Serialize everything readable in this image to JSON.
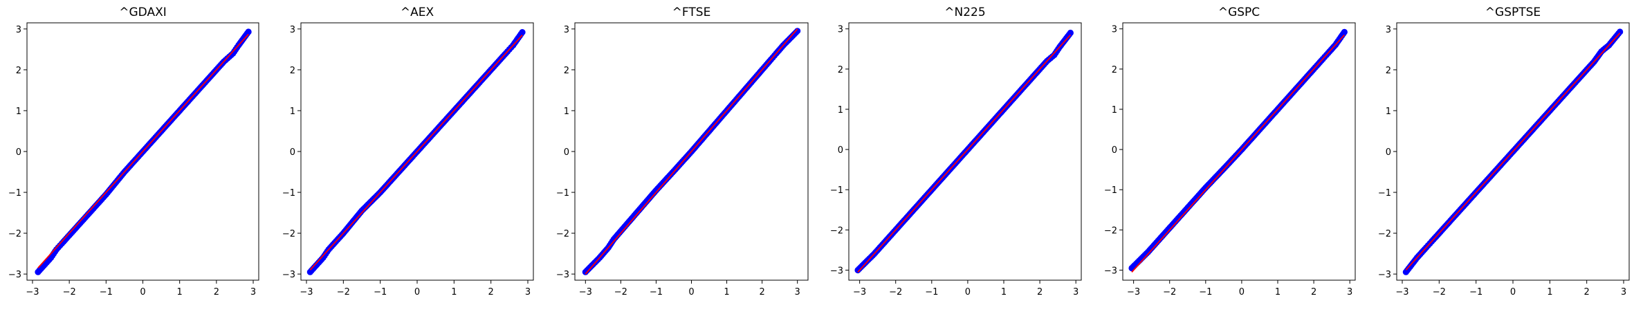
{
  "chart_data": [
    {
      "type": "scatter",
      "title": "^GDAXI",
      "xlabel": "",
      "ylabel": "",
      "xlim": [
        -3.15,
        3.15
      ],
      "ylim": [
        -3.15,
        3.15
      ],
      "xticks": [
        -3,
        -2,
        -1,
        0,
        1,
        2,
        3
      ],
      "xtick_labels": [
        "−3",
        "−2",
        "−1",
        "0",
        "1",
        "2",
        "3"
      ],
      "yticks": [
        -3,
        -2,
        -1,
        0,
        1,
        2,
        3
      ],
      "ytick_labels": [
        "−3",
        "−2",
        "−1",
        "0",
        "1",
        "2",
        "3"
      ],
      "grid": false,
      "series": [
        {
          "kind": "points",
          "color": "#0000ff",
          "x": [
            -2.85,
            -2.5,
            -2.35,
            -2.2,
            -2.0,
            -1.5,
            -1.0,
            -0.5,
            0.0,
            0.5,
            1.0,
            1.5,
            2.0,
            2.2,
            2.45,
            2.6,
            2.87
          ],
          "y": [
            -2.95,
            -2.6,
            -2.4,
            -2.25,
            -2.05,
            -1.55,
            -1.05,
            -0.5,
            0.0,
            0.5,
            1.0,
            1.5,
            2.0,
            2.2,
            2.4,
            2.6,
            2.93
          ]
        },
        {
          "kind": "line",
          "color": "#ff0000",
          "x": [
            -2.85,
            2.87
          ],
          "y": [
            -2.85,
            2.87
          ]
        }
      ]
    },
    {
      "type": "scatter",
      "title": "^AEX",
      "xlabel": "",
      "ylabel": "",
      "xlim": [
        -3.15,
        3.15
      ],
      "ylim": [
        -3.15,
        3.15
      ],
      "xticks": [
        -3,
        -2,
        -1,
        0,
        1,
        2,
        3
      ],
      "xtick_labels": [
        "−3",
        "−2",
        "−1",
        "0",
        "1",
        "2",
        "3"
      ],
      "yticks": [
        -3,
        -2,
        -1,
        0,
        1,
        2,
        3
      ],
      "ytick_labels": [
        "−3",
        "−2",
        "−1",
        "0",
        "1",
        "2",
        "3"
      ],
      "grid": false,
      "series": [
        {
          "kind": "points",
          "color": "#0000ff",
          "x": [
            -2.9,
            -2.55,
            -2.4,
            -2.2,
            -2.0,
            -1.5,
            -1.0,
            -0.5,
            0.0,
            0.5,
            1.0,
            1.5,
            2.0,
            2.25,
            2.45,
            2.6,
            2.85
          ],
          "y": [
            -2.95,
            -2.6,
            -2.4,
            -2.2,
            -2.0,
            -1.45,
            -1.0,
            -0.5,
            0.0,
            0.5,
            1.0,
            1.5,
            2.0,
            2.25,
            2.45,
            2.6,
            2.92
          ]
        },
        {
          "kind": "line",
          "color": "#ff0000",
          "x": [
            -2.9,
            2.85
          ],
          "y": [
            -2.9,
            2.85
          ]
        }
      ]
    },
    {
      "type": "scatter",
      "title": "^FTSE",
      "xlabel": "",
      "ylabel": "",
      "xlim": [
        -3.3,
        3.3
      ],
      "ylim": [
        -3.15,
        3.15
      ],
      "xticks": [
        -3,
        -2,
        -1,
        0,
        1,
        2,
        3
      ],
      "xtick_labels": [
        "−3",
        "−2",
        "−1",
        "0",
        "1",
        "2",
        "3"
      ],
      "yticks": [
        -3,
        -2,
        -1,
        0,
        1,
        2,
        3
      ],
      "ytick_labels": [
        "−3",
        "−2",
        "−1",
        "0",
        "1",
        "2",
        "3"
      ],
      "grid": false,
      "series": [
        {
          "kind": "points",
          "color": "#0000ff",
          "x": [
            -3.0,
            -2.6,
            -2.35,
            -2.2,
            -2.0,
            -1.5,
            -1.0,
            -0.5,
            0.0,
            0.5,
            1.0,
            1.5,
            2.0,
            2.25,
            2.4,
            2.6,
            3.0
          ],
          "y": [
            -2.95,
            -2.6,
            -2.35,
            -2.15,
            -1.95,
            -1.45,
            -0.95,
            -0.48,
            0.0,
            0.5,
            1.0,
            1.5,
            2.0,
            2.25,
            2.4,
            2.6,
            2.95
          ]
        },
        {
          "kind": "line",
          "color": "#ff0000",
          "x": [
            -3.0,
            3.0
          ],
          "y": [
            -3.0,
            3.0
          ]
        }
      ]
    },
    {
      "type": "scatter",
      "title": "^N225",
      "xlabel": "",
      "ylabel": "",
      "xlim": [
        -3.3,
        3.15
      ],
      "ylim": [
        -3.25,
        3.15
      ],
      "xticks": [
        -3,
        -2,
        -1,
        0,
        1,
        2,
        3
      ],
      "xtick_labels": [
        "−3",
        "−2",
        "−1",
        "0",
        "1",
        "2",
        "3"
      ],
      "yticks": [
        -3,
        -2,
        -1,
        0,
        1,
        2,
        3
      ],
      "ytick_labels": [
        "−3",
        "−2",
        "−1",
        "0",
        "1",
        "2",
        "3"
      ],
      "grid": false,
      "series": [
        {
          "kind": "points",
          "color": "#0000ff",
          "x": [
            -3.05,
            -2.6,
            -2.4,
            -2.2,
            -2.0,
            -1.5,
            -1.0,
            -0.5,
            0.0,
            0.5,
            1.0,
            1.5,
            2.0,
            2.2,
            2.4,
            2.55,
            2.85
          ],
          "y": [
            -3.0,
            -2.6,
            -2.4,
            -2.2,
            -2.0,
            -1.5,
            -1.0,
            -0.5,
            0.0,
            0.5,
            1.0,
            1.5,
            2.0,
            2.2,
            2.35,
            2.55,
            2.9
          ]
        },
        {
          "kind": "line",
          "color": "#ff0000",
          "x": [
            -3.05,
            2.85
          ],
          "y": [
            -3.05,
            2.85
          ]
        }
      ]
    },
    {
      "type": "scatter",
      "title": "^GSPC",
      "xlabel": "",
      "ylabel": "",
      "xlim": [
        -3.3,
        3.15
      ],
      "ylim": [
        -3.25,
        3.15
      ],
      "xticks": [
        -3,
        -2,
        -1,
        0,
        1,
        2,
        3
      ],
      "xtick_labels": [
        "−3",
        "−2",
        "−1",
        "0",
        "1",
        "2",
        "3"
      ],
      "yticks": [
        -3,
        -2,
        -1,
        0,
        1,
        2,
        3
      ],
      "ytick_labels": [
        "−3",
        "−2",
        "−1",
        "0",
        "1",
        "2",
        "3"
      ],
      "grid": false,
      "series": [
        {
          "kind": "points",
          "color": "#0000ff",
          "x": [
            -3.05,
            -2.6,
            -2.4,
            -2.2,
            -2.0,
            -1.5,
            -1.0,
            -0.5,
            0.0,
            0.5,
            1.0,
            1.5,
            2.0,
            2.25,
            2.4,
            2.6,
            2.85
          ],
          "y": [
            -2.95,
            -2.55,
            -2.35,
            -2.15,
            -1.95,
            -1.45,
            -0.95,
            -0.48,
            0.0,
            0.5,
            1.0,
            1.5,
            2.0,
            2.25,
            2.4,
            2.6,
            2.92
          ]
        },
        {
          "kind": "line",
          "color": "#ff0000",
          "x": [
            -3.05,
            2.85
          ],
          "y": [
            -3.05,
            2.85
          ]
        }
      ]
    },
    {
      "type": "scatter",
      "title": "^GSPTSE",
      "xlabel": "",
      "ylabel": "",
      "xlim": [
        -3.15,
        3.15
      ],
      "ylim": [
        -3.15,
        3.15
      ],
      "xticks": [
        -3,
        -2,
        -1,
        0,
        1,
        2,
        3
      ],
      "xtick_labels": [
        "−3",
        "−2",
        "−1",
        "0",
        "1",
        "2",
        "3"
      ],
      "yticks": [
        -3,
        -2,
        -1,
        0,
        1,
        2,
        3
      ],
      "ytick_labels": [
        "−3",
        "−2",
        "−1",
        "0",
        "1",
        "2",
        "3"
      ],
      "grid": false,
      "series": [
        {
          "kind": "points",
          "color": "#0000ff",
          "x": [
            -2.9,
            -2.6,
            -2.35,
            -2.2,
            -2.0,
            -1.5,
            -1.0,
            -0.5,
            0.0,
            0.5,
            1.0,
            1.5,
            2.0,
            2.2,
            2.4,
            2.6,
            2.9
          ],
          "y": [
            -2.95,
            -2.6,
            -2.35,
            -2.2,
            -2.0,
            -1.5,
            -1.0,
            -0.5,
            0.0,
            0.5,
            1.0,
            1.5,
            2.0,
            2.2,
            2.45,
            2.6,
            2.93
          ]
        },
        {
          "kind": "line",
          "color": "#ff0000",
          "x": [
            -2.9,
            2.9
          ],
          "y": [
            -2.9,
            2.9
          ]
        }
      ]
    }
  ]
}
